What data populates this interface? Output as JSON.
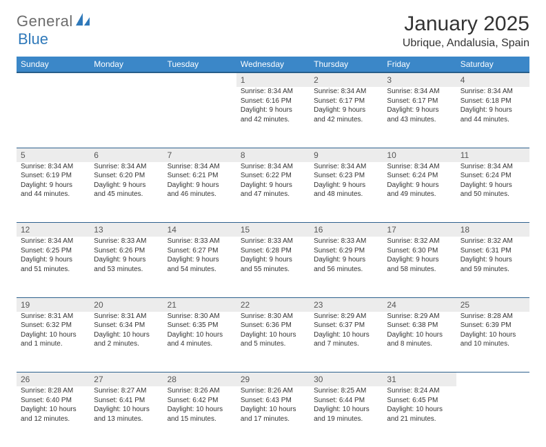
{
  "brand": {
    "part1": "General",
    "part2": "Blue"
  },
  "title": "January 2025",
  "location": "Ubrique, Andalusia, Spain",
  "colors": {
    "header_bg": "#3b87c8",
    "header_border": "#275e8a",
    "row_border": "#2b5f8c",
    "daynum_bg": "#ececec",
    "brand_gray": "#6c6c6c",
    "brand_blue": "#2f79ba"
  },
  "days_of_week": [
    "Sunday",
    "Monday",
    "Tuesday",
    "Wednesday",
    "Thursday",
    "Friday",
    "Saturday"
  ],
  "weeks": [
    [
      null,
      null,
      null,
      {
        "n": "1",
        "sr": "Sunrise: 8:34 AM",
        "ss": "Sunset: 6:16 PM",
        "d1": "Daylight: 9 hours",
        "d2": "and 42 minutes."
      },
      {
        "n": "2",
        "sr": "Sunrise: 8:34 AM",
        "ss": "Sunset: 6:17 PM",
        "d1": "Daylight: 9 hours",
        "d2": "and 42 minutes."
      },
      {
        "n": "3",
        "sr": "Sunrise: 8:34 AM",
        "ss": "Sunset: 6:17 PM",
        "d1": "Daylight: 9 hours",
        "d2": "and 43 minutes."
      },
      {
        "n": "4",
        "sr": "Sunrise: 8:34 AM",
        "ss": "Sunset: 6:18 PM",
        "d1": "Daylight: 9 hours",
        "d2": "and 44 minutes."
      }
    ],
    [
      {
        "n": "5",
        "sr": "Sunrise: 8:34 AM",
        "ss": "Sunset: 6:19 PM",
        "d1": "Daylight: 9 hours",
        "d2": "and 44 minutes."
      },
      {
        "n": "6",
        "sr": "Sunrise: 8:34 AM",
        "ss": "Sunset: 6:20 PM",
        "d1": "Daylight: 9 hours",
        "d2": "and 45 minutes."
      },
      {
        "n": "7",
        "sr": "Sunrise: 8:34 AM",
        "ss": "Sunset: 6:21 PM",
        "d1": "Daylight: 9 hours",
        "d2": "and 46 minutes."
      },
      {
        "n": "8",
        "sr": "Sunrise: 8:34 AM",
        "ss": "Sunset: 6:22 PM",
        "d1": "Daylight: 9 hours",
        "d2": "and 47 minutes."
      },
      {
        "n": "9",
        "sr": "Sunrise: 8:34 AM",
        "ss": "Sunset: 6:23 PM",
        "d1": "Daylight: 9 hours",
        "d2": "and 48 minutes."
      },
      {
        "n": "10",
        "sr": "Sunrise: 8:34 AM",
        "ss": "Sunset: 6:24 PM",
        "d1": "Daylight: 9 hours",
        "d2": "and 49 minutes."
      },
      {
        "n": "11",
        "sr": "Sunrise: 8:34 AM",
        "ss": "Sunset: 6:24 PM",
        "d1": "Daylight: 9 hours",
        "d2": "and 50 minutes."
      }
    ],
    [
      {
        "n": "12",
        "sr": "Sunrise: 8:34 AM",
        "ss": "Sunset: 6:25 PM",
        "d1": "Daylight: 9 hours",
        "d2": "and 51 minutes."
      },
      {
        "n": "13",
        "sr": "Sunrise: 8:33 AM",
        "ss": "Sunset: 6:26 PM",
        "d1": "Daylight: 9 hours",
        "d2": "and 53 minutes."
      },
      {
        "n": "14",
        "sr": "Sunrise: 8:33 AM",
        "ss": "Sunset: 6:27 PM",
        "d1": "Daylight: 9 hours",
        "d2": "and 54 minutes."
      },
      {
        "n": "15",
        "sr": "Sunrise: 8:33 AM",
        "ss": "Sunset: 6:28 PM",
        "d1": "Daylight: 9 hours",
        "d2": "and 55 minutes."
      },
      {
        "n": "16",
        "sr": "Sunrise: 8:33 AM",
        "ss": "Sunset: 6:29 PM",
        "d1": "Daylight: 9 hours",
        "d2": "and 56 minutes."
      },
      {
        "n": "17",
        "sr": "Sunrise: 8:32 AM",
        "ss": "Sunset: 6:30 PM",
        "d1": "Daylight: 9 hours",
        "d2": "and 58 minutes."
      },
      {
        "n": "18",
        "sr": "Sunrise: 8:32 AM",
        "ss": "Sunset: 6:31 PM",
        "d1": "Daylight: 9 hours",
        "d2": "and 59 minutes."
      }
    ],
    [
      {
        "n": "19",
        "sr": "Sunrise: 8:31 AM",
        "ss": "Sunset: 6:32 PM",
        "d1": "Daylight: 10 hours",
        "d2": "and 1 minute."
      },
      {
        "n": "20",
        "sr": "Sunrise: 8:31 AM",
        "ss": "Sunset: 6:34 PM",
        "d1": "Daylight: 10 hours",
        "d2": "and 2 minutes."
      },
      {
        "n": "21",
        "sr": "Sunrise: 8:30 AM",
        "ss": "Sunset: 6:35 PM",
        "d1": "Daylight: 10 hours",
        "d2": "and 4 minutes."
      },
      {
        "n": "22",
        "sr": "Sunrise: 8:30 AM",
        "ss": "Sunset: 6:36 PM",
        "d1": "Daylight: 10 hours",
        "d2": "and 5 minutes."
      },
      {
        "n": "23",
        "sr": "Sunrise: 8:29 AM",
        "ss": "Sunset: 6:37 PM",
        "d1": "Daylight: 10 hours",
        "d2": "and 7 minutes."
      },
      {
        "n": "24",
        "sr": "Sunrise: 8:29 AM",
        "ss": "Sunset: 6:38 PM",
        "d1": "Daylight: 10 hours",
        "d2": "and 8 minutes."
      },
      {
        "n": "25",
        "sr": "Sunrise: 8:28 AM",
        "ss": "Sunset: 6:39 PM",
        "d1": "Daylight: 10 hours",
        "d2": "and 10 minutes."
      }
    ],
    [
      {
        "n": "26",
        "sr": "Sunrise: 8:28 AM",
        "ss": "Sunset: 6:40 PM",
        "d1": "Daylight: 10 hours",
        "d2": "and 12 minutes."
      },
      {
        "n": "27",
        "sr": "Sunrise: 8:27 AM",
        "ss": "Sunset: 6:41 PM",
        "d1": "Daylight: 10 hours",
        "d2": "and 13 minutes."
      },
      {
        "n": "28",
        "sr": "Sunrise: 8:26 AM",
        "ss": "Sunset: 6:42 PM",
        "d1": "Daylight: 10 hours",
        "d2": "and 15 minutes."
      },
      {
        "n": "29",
        "sr": "Sunrise: 8:26 AM",
        "ss": "Sunset: 6:43 PM",
        "d1": "Daylight: 10 hours",
        "d2": "and 17 minutes."
      },
      {
        "n": "30",
        "sr": "Sunrise: 8:25 AM",
        "ss": "Sunset: 6:44 PM",
        "d1": "Daylight: 10 hours",
        "d2": "and 19 minutes."
      },
      {
        "n": "31",
        "sr": "Sunrise: 8:24 AM",
        "ss": "Sunset: 6:45 PM",
        "d1": "Daylight: 10 hours",
        "d2": "and 21 minutes."
      },
      null
    ]
  ]
}
